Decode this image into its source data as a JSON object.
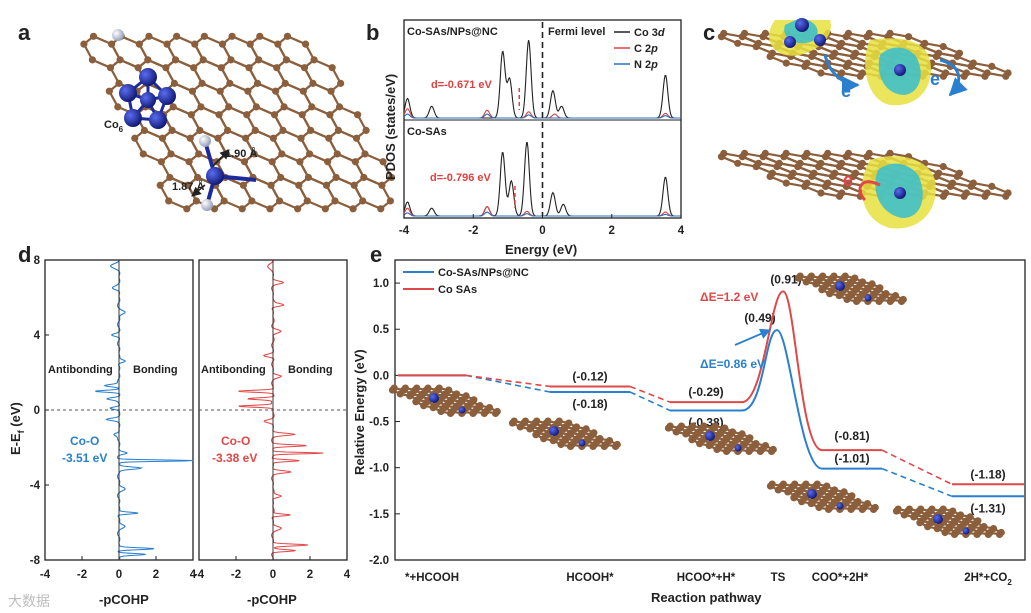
{
  "panel_labels": {
    "a": "a",
    "b": "b",
    "c": "c",
    "d": "d",
    "e": "e"
  },
  "panel_a": {
    "cluster_label": "Co",
    "cluster_sub": "6",
    "bond1": "1.90 Å",
    "bond2": "1.87 Å"
  },
  "panel_c": {
    "electron_label": "e"
  },
  "watermark": "大数据",
  "colors": {
    "co3d": "#222222",
    "c2p": "#e04040",
    "n2p": "#2a6fbf",
    "nps": "#2a7fcf",
    "sas": "#e04848",
    "carbon": "#8b5e3c",
    "cobalt": "#1c2a9c",
    "nitrogen": "#aab4c8",
    "blue_iso": "#3fc0c8",
    "yellow_iso": "#e8e040"
  },
  "chart_data": [
    {
      "id": "b",
      "type": "line",
      "title": "PDOS",
      "xlabel": "Energy (eV)",
      "ylabel": "PDOS (states/eV)",
      "xlim": [
        -4,
        4
      ],
      "xticks": [
        "-4",
        "-2",
        "0",
        "2",
        "4"
      ],
      "fermi_label": "Fermi level",
      "legend": [
        "Co 3d",
        "C 2p",
        "N 2p"
      ],
      "legend_text": {
        "co3d": "Co 3",
        "co3d_i": "d",
        "c2p": "C 2",
        "c2p_i": "p",
        "n2p": "N 2",
        "n2p_i": "p"
      },
      "subpanels": [
        {
          "name": "Co-SAs/NPs@NC",
          "d_band_label": "d=-0.671 eV",
          "d_band_center": -0.671,
          "co3d_peaks": [
            [
              -3.9,
              0.25
            ],
            [
              -3.2,
              0.15
            ],
            [
              -1.15,
              0.85
            ],
            [
              -0.95,
              0.5
            ],
            [
              -0.4,
              1.0
            ],
            [
              0.3,
              0.35
            ],
            [
              0.55,
              0.15
            ],
            [
              3.55,
              0.55
            ]
          ],
          "c2p_peaks": [
            [
              -3.9,
              0.12
            ],
            [
              -1.6,
              0.1
            ],
            [
              -0.4,
              0.08
            ],
            [
              0.35,
              0.05
            ],
            [
              3.55,
              0.06
            ]
          ],
          "n2p_peaks": [
            [
              -3.9,
              0.05
            ],
            [
              -1.6,
              0.05
            ],
            [
              -0.4,
              0.04
            ],
            [
              3.55,
              0.03
            ]
          ]
        },
        {
          "name": "Co-SAs",
          "d_band_label": "d=-0.796 eV",
          "d_band_center": -0.796,
          "co3d_peaks": [
            [
              -3.9,
              0.18
            ],
            [
              -3.2,
              0.1
            ],
            [
              -1.6,
              0.12
            ],
            [
              -1.15,
              0.82
            ],
            [
              -0.9,
              0.45
            ],
            [
              -0.45,
              0.95
            ],
            [
              0.3,
              0.3
            ],
            [
              0.6,
              0.15
            ],
            [
              3.55,
              0.5
            ]
          ],
          "c2p_peaks": [
            [
              -3.9,
              0.1
            ],
            [
              -1.6,
              0.12
            ],
            [
              -0.45,
              0.06
            ],
            [
              3.55,
              0.05
            ]
          ],
          "n2p_peaks": [
            [
              -3.9,
              0.04
            ],
            [
              -1.6,
              0.05
            ],
            [
              -0.45,
              0.03
            ],
            [
              3.55,
              0.02
            ]
          ]
        }
      ]
    },
    {
      "id": "d",
      "type": "line",
      "ylabel_main": "E-E",
      "ylabel_sub": "f",
      "ylabel_unit": " (eV)",
      "xlabel": "-pCOHP",
      "ylim": [
        -8,
        8
      ],
      "yticks": [
        "-8",
        "-4",
        "0",
        "4",
        "8"
      ],
      "xlim": [
        -4,
        4
      ],
      "xticks": [
        "-4",
        "-2",
        "0",
        "2",
        "4"
      ],
      "antibonding": "Antibonding",
      "bonding": "Bonding",
      "subpanels": [
        {
          "name": "Co-SAs/NPs@NC",
          "bond_label": "Co-O",
          "icohp_label": "-3.51 eV",
          "icohp": -3.51,
          "peaks": [
            [
              7.7,
              -0.4,
              0.2
            ],
            [
              6.5,
              -0.3,
              0.15
            ],
            [
              5.2,
              0.3,
              0.15
            ],
            [
              4.0,
              -0.4,
              0.12
            ],
            [
              2.6,
              0.4,
              0.12
            ],
            [
              1.3,
              -0.8,
              0.1
            ],
            [
              1.0,
              -1.3,
              0.08
            ],
            [
              0.6,
              -0.6,
              0.1
            ],
            [
              0.1,
              -0.5,
              0.1
            ],
            [
              -0.5,
              -0.6,
              0.1
            ],
            [
              -1.3,
              -0.3,
              0.12
            ],
            [
              -2.3,
              0.4,
              0.1
            ],
            [
              -2.7,
              4.1,
              0.06
            ],
            [
              -3.1,
              1.2,
              0.1
            ],
            [
              -4.2,
              0.3,
              0.15
            ],
            [
              -5.5,
              1.1,
              0.08
            ],
            [
              -6.2,
              0.3,
              0.15
            ],
            [
              -7.4,
              1.9,
              0.08
            ],
            [
              -7.7,
              1.5,
              0.08
            ]
          ]
        },
        {
          "name": "Co SAs",
          "bond_label": "Co-O",
          "icohp_label": "-3.38 eV",
          "icohp": -3.38,
          "peaks": [
            [
              7.7,
              -0.3,
              0.2
            ],
            [
              6.8,
              0.5,
              0.12
            ],
            [
              5.6,
              0.6,
              0.12
            ],
            [
              4.2,
              0.4,
              0.15
            ],
            [
              2.9,
              -0.5,
              0.12
            ],
            [
              1.8,
              0.4,
              0.12
            ],
            [
              1.0,
              -1.9,
              0.08
            ],
            [
              0.6,
              -1.4,
              0.08
            ],
            [
              0.2,
              -1.9,
              0.08
            ],
            [
              -0.6,
              -0.4,
              0.12
            ],
            [
              -1.3,
              1.1,
              0.1
            ],
            [
              -1.9,
              1.8,
              0.08
            ],
            [
              -2.3,
              2.7,
              0.06
            ],
            [
              -2.7,
              1.5,
              0.08
            ],
            [
              -3.3,
              0.9,
              0.1
            ],
            [
              -4.6,
              0.5,
              0.12
            ],
            [
              -5.6,
              1.0,
              0.08
            ],
            [
              -6.3,
              0.4,
              0.15
            ],
            [
              -7.2,
              1.9,
              0.08
            ],
            [
              -7.5,
              1.2,
              0.08
            ]
          ]
        }
      ]
    },
    {
      "id": "e",
      "type": "line",
      "xlabel": "Reaction pathway",
      "ylabel": "Relative Energy (eV)",
      "ylim": [
        -2.0,
        1.25
      ],
      "yticks": [
        "1.0",
        "0.5",
        "0.0",
        "-0.5",
        "-1.0",
        "-1.5",
        "-2.0"
      ],
      "categories": [
        "*+HCOOH",
        "HCOOH*",
        "HCOO*+H*",
        "TS",
        "COO*+2H*",
        "2H*+CO"
      ],
      "last_sub": "2",
      "series": [
        {
          "name": "Co-SAs/NPs@NC",
          "values": [
            0.0,
            -0.18,
            -0.38,
            0.49,
            -1.01,
            -1.31
          ],
          "labels": [
            "",
            "(-0.18)",
            "(-0.38)",
            "(0.49)",
            "(-1.01)",
            "(-1.31)"
          ]
        },
        {
          "name": "Co SAs",
          "values": [
            0.0,
            -0.12,
            -0.29,
            0.91,
            -0.81,
            -1.18
          ],
          "labels": [
            "",
            "(-0.12)",
            "(-0.29)",
            "(0.91)",
            "(-0.81)",
            "(-1.18)"
          ]
        }
      ],
      "barrier_labels": [
        {
          "series": "Co SAs",
          "text": "ΔE=1.2 eV",
          "value": 1.2
        },
        {
          "series": "Co-SAs/NPs@NC",
          "text": "ΔE=0.86 eV",
          "value": 0.86
        }
      ]
    }
  ]
}
